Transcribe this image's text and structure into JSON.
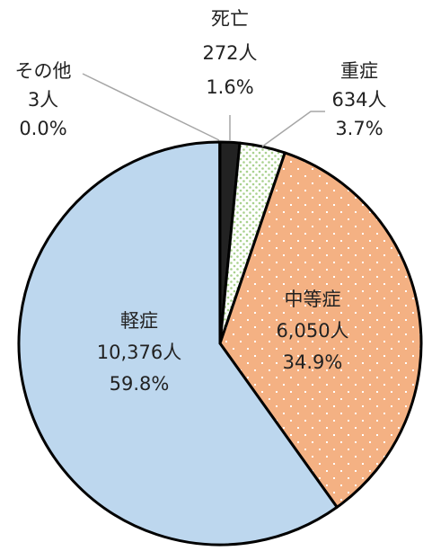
{
  "chart_data": {
    "type": "pie",
    "categories": [
      "死亡",
      "重症",
      "中等症",
      "軽症",
      "その他"
    ],
    "values": [
      272,
      634,
      6050,
      10376,
      3
    ],
    "value_labels": [
      "272人",
      "634人",
      "6,050人",
      "10,376人",
      "3人"
    ],
    "percents": [
      1.6,
      3.7,
      34.9,
      59.8,
      0.0
    ],
    "percent_labels": [
      "1.6%",
      "3.7%",
      "34.9%",
      "59.8%",
      "0.0%"
    ],
    "colors": [
      "#222222",
      "#ffffff",
      "#f4b183",
      "#bdd7ee",
      "#a6a6a6"
    ]
  }
}
